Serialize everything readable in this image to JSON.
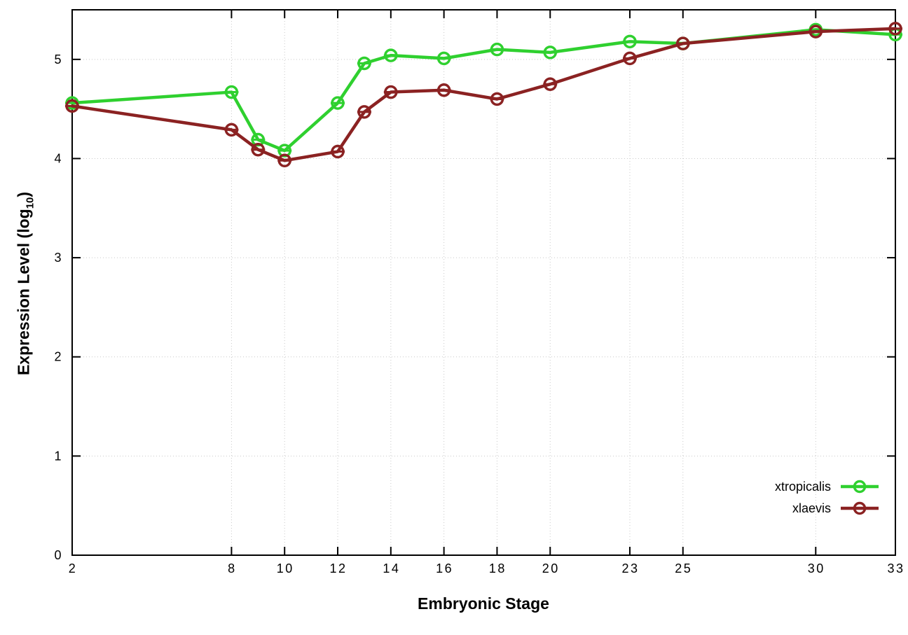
{
  "chart_data": {
    "type": "line",
    "title": "",
    "xlabel": "Embryonic Stage",
    "ylabel": "Expression Level (log10)",
    "ylabel_parts": {
      "main": "Expression Level (log",
      "sub": "10",
      "close": ")"
    },
    "x": [
      2,
      8,
      9,
      10,
      12,
      13,
      14,
      16,
      18,
      20,
      23,
      25,
      30,
      33
    ],
    "xticks": [
      2,
      8,
      10,
      12,
      14,
      16,
      18,
      20,
      23,
      25,
      30,
      33
    ],
    "yticks": [
      0,
      1,
      2,
      3,
      4,
      5
    ],
    "xlim": [
      2,
      33
    ],
    "ylim": [
      0,
      5.5
    ],
    "grid": true,
    "point_style": "open-circle-with-error-bar",
    "legend_position": "inside-right-bottom",
    "series": [
      {
        "name": "xtropicalis",
        "color": "#2fd02f",
        "values": [
          4.56,
          4.67,
          4.19,
          4.08,
          4.56,
          4.96,
          5.04,
          5.01,
          5.1,
          5.07,
          5.18,
          5.16,
          5.3,
          5.25
        ]
      },
      {
        "name": "xlaevis",
        "color": "#8b2222",
        "values": [
          4.53,
          4.29,
          4.09,
          3.98,
          4.07,
          4.47,
          4.67,
          4.69,
          4.6,
          4.75,
          5.01,
          5.16,
          5.28,
          5.31
        ]
      }
    ]
  }
}
